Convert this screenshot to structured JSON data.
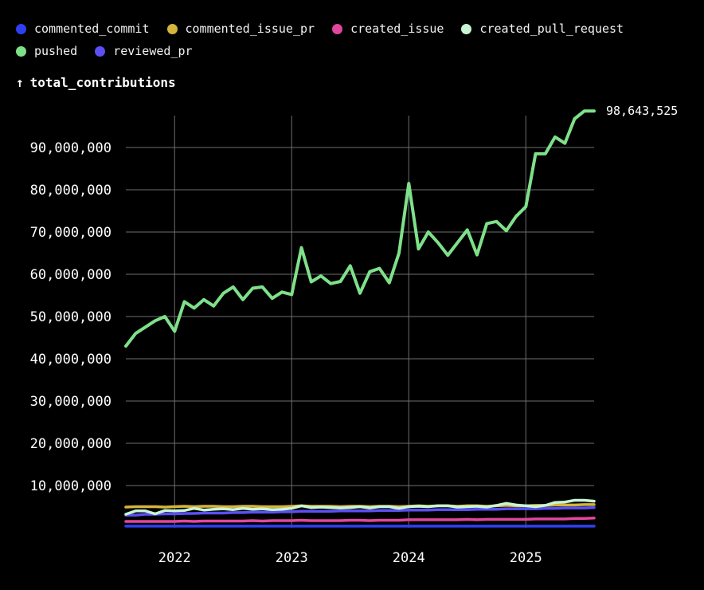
{
  "chart_data": {
    "type": "line",
    "ylabel": "total_contributions",
    "ylabel_arrow": "↑",
    "xlim": [
      "2021-08",
      "2025-08"
    ],
    "ylim": [
      0,
      100000000
    ],
    "grid": true,
    "legend_position": "top-left",
    "x_ticks": [
      {
        "label": "2022",
        "x": "2022-01"
      },
      {
        "label": "2023",
        "x": "2023-01"
      },
      {
        "label": "2024",
        "x": "2024-01"
      },
      {
        "label": "2025",
        "x": "2025-01"
      }
    ],
    "y_ticks": [
      {
        "label": "10,000,000",
        "value": 10000000
      },
      {
        "label": "20,000,000",
        "value": 20000000
      },
      {
        "label": "30,000,000",
        "value": 30000000
      },
      {
        "label": "40,000,000",
        "value": 40000000
      },
      {
        "label": "50,000,000",
        "value": 50000000
      },
      {
        "label": "60,000,000",
        "value": 60000000
      },
      {
        "label": "70,000,000",
        "value": 70000000
      },
      {
        "label": "80,000,000",
        "value": 80000000
      },
      {
        "label": "90,000,000",
        "value": 90000000
      }
    ],
    "end_label": {
      "series": "pushed",
      "text": "98,643,525"
    },
    "x": [
      "2021-08",
      "2021-09",
      "2021-10",
      "2021-11",
      "2021-12",
      "2022-01",
      "2022-02",
      "2022-03",
      "2022-04",
      "2022-05",
      "2022-06",
      "2022-07",
      "2022-08",
      "2022-09",
      "2022-10",
      "2022-11",
      "2022-12",
      "2023-01",
      "2023-02",
      "2023-03",
      "2023-04",
      "2023-05",
      "2023-06",
      "2023-07",
      "2023-08",
      "2023-09",
      "2023-10",
      "2023-11",
      "2023-12",
      "2024-01",
      "2024-02",
      "2024-03",
      "2024-04",
      "2024-05",
      "2024-06",
      "2024-07",
      "2024-08",
      "2024-09",
      "2024-10",
      "2024-11",
      "2024-12",
      "2025-01",
      "2025-02",
      "2025-03",
      "2025-04",
      "2025-05",
      "2025-06",
      "2025-07",
      "2025-08"
    ],
    "series": [
      {
        "name": "commented_commit",
        "color": "#2f3ff0",
        "values": [
          400000,
          400000,
          400000,
          400000,
          400000,
          400000,
          400000,
          400000,
          400000,
          400000,
          400000,
          400000,
          400000,
          400000,
          400000,
          400000,
          400000,
          400000,
          400000,
          400000,
          400000,
          400000,
          400000,
          400000,
          400000,
          400000,
          400000,
          400000,
          400000,
          400000,
          400000,
          400000,
          400000,
          400000,
          400000,
          400000,
          400000,
          400000,
          400000,
          400000,
          400000,
          400000,
          400000,
          400000,
          400000,
          400000,
          400000,
          400000,
          400000
        ]
      },
      {
        "name": "commented_issue_pr",
        "color": "#d4b43c",
        "values": [
          4900000,
          5000000,
          5000000,
          5000000,
          4900000,
          5000000,
          5100000,
          5000000,
          5100000,
          5100000,
          5000000,
          5000000,
          5100000,
          5100000,
          5000000,
          5000000,
          5000000,
          5100000,
          5200000,
          5100000,
          5100000,
          5100000,
          5000000,
          5100000,
          5100000,
          5000000,
          5100000,
          5100000,
          5000000,
          5100000,
          5200000,
          5100000,
          5200000,
          5200000,
          5100000,
          5200000,
          5200000,
          5100000,
          5200000,
          5300000,
          5200000,
          5200000,
          5300000,
          5300000,
          5400000,
          5400000,
          5400000,
          5500000,
          5500000
        ]
      },
      {
        "name": "created_issue",
        "color": "#e0479e",
        "values": [
          1500000,
          1500000,
          1500000,
          1500000,
          1500000,
          1500000,
          1600000,
          1500000,
          1600000,
          1600000,
          1600000,
          1600000,
          1600000,
          1700000,
          1600000,
          1700000,
          1700000,
          1700000,
          1800000,
          1700000,
          1700000,
          1700000,
          1700000,
          1800000,
          1800000,
          1700000,
          1800000,
          1800000,
          1800000,
          1900000,
          1900000,
          1900000,
          1900000,
          1900000,
          1900000,
          2000000,
          1900000,
          2000000,
          2000000,
          2000000,
          2000000,
          2000000,
          2100000,
          2100000,
          2100000,
          2100000,
          2200000,
          2200000,
          2300000
        ]
      },
      {
        "name": "created_pull_request",
        "color": "#c8f5d4",
        "values": [
          3200000,
          4000000,
          4000000,
          3300000,
          4100000,
          4000000,
          4100000,
          4600000,
          4200000,
          4400000,
          4500000,
          4300000,
          4600000,
          4400000,
          4500000,
          4300000,
          4400000,
          4600000,
          5200000,
          4800000,
          4900000,
          4800000,
          4700000,
          4800000,
          5000000,
          4700000,
          5000000,
          5000000,
          4600000,
          5000000,
          5100000,
          5000000,
          5200000,
          5200000,
          4900000,
          5000000,
          5100000,
          4900000,
          5300000,
          5800000,
          5400000,
          5200000,
          5000000,
          5300000,
          6000000,
          6100000,
          6500000,
          6500000,
          6300000
        ]
      },
      {
        "name": "pushed",
        "color": "#7fe08a",
        "values": [
          43000000,
          46000000,
          47500000,
          49000000,
          50000000,
          46500000,
          53500000,
          52000000,
          54000000,
          52500000,
          55500000,
          57000000,
          54000000,
          56700000,
          57000000,
          54300000,
          55800000,
          55200000,
          66300000,
          58200000,
          59600000,
          57800000,
          58300000,
          62000000,
          55500000,
          60600000,
          61400000,
          58000000,
          65000000,
          81500000,
          66000000,
          70000000,
          67500000,
          64500000,
          67500000,
          70500000,
          64600000,
          72000000,
          72500000,
          70300000,
          73700000,
          76000000,
          88500000,
          88500000,
          92500000,
          91000000,
          96800000,
          98643525,
          98643525
        ]
      },
      {
        "name": "reviewed_pr",
        "color": "#5b4ff5",
        "values": [
          3000000,
          3000000,
          3200000,
          3200000,
          3300000,
          3300000,
          3400000,
          3400000,
          3500000,
          3500000,
          3500000,
          3600000,
          3600000,
          3700000,
          3700000,
          3700000,
          3800000,
          3800000,
          3900000,
          3900000,
          3900000,
          3900000,
          4000000,
          4000000,
          4000000,
          4000000,
          4100000,
          4100000,
          4100000,
          4200000,
          4200000,
          4200000,
          4300000,
          4300000,
          4300000,
          4300000,
          4400000,
          4400000,
          4400000,
          4500000,
          4500000,
          4500000,
          4500000,
          4600000,
          4600000,
          4700000,
          4700000,
          4700000,
          4800000
        ]
      }
    ]
  }
}
